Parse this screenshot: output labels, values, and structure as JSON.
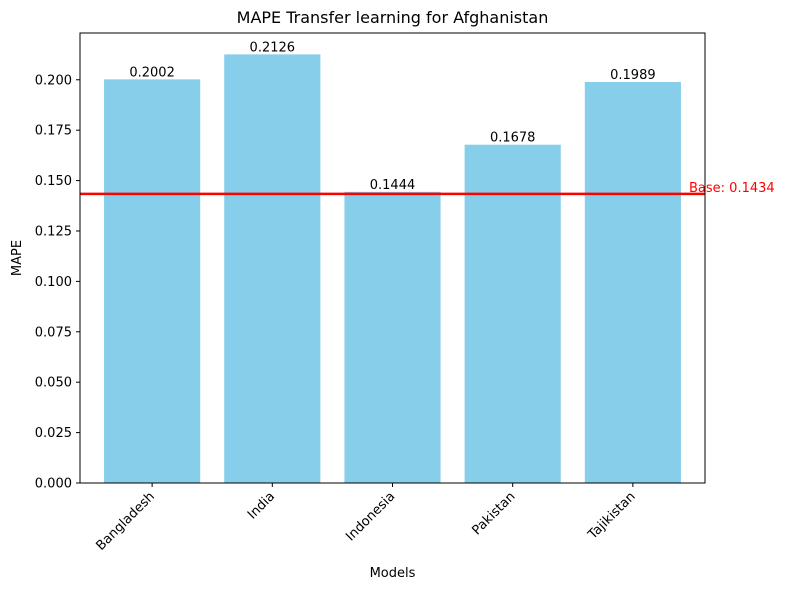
{
  "chart_data": {
    "type": "bar",
    "title": "MAPE Transfer learning for Afghanistan",
    "xlabel": "Models",
    "ylabel": "MAPE",
    "categories": [
      "Bangladesh",
      "India",
      "Indonesia",
      "Pakistan",
      "Tajikistan"
    ],
    "values": [
      0.2002,
      0.2126,
      0.1444,
      0.1678,
      0.1989
    ],
    "value_labels": [
      "0.2002",
      "0.2126",
      "0.1444",
      "0.1678",
      "0.1989"
    ],
    "bar_color": "#87ceeb",
    "ylim": [
      0,
      0.2232
    ],
    "yticks": [
      0.0,
      0.025,
      0.05,
      0.075,
      0.1,
      0.125,
      0.15,
      0.175,
      0.2
    ],
    "ytick_labels": [
      "0.000",
      "0.025",
      "0.050",
      "0.075",
      "0.100",
      "0.125",
      "0.150",
      "0.175",
      "0.200"
    ],
    "baseline": {
      "value": 0.1434,
      "label": "Base: 0.1434",
      "color": "#ff0000"
    },
    "grid": false,
    "legend": "none"
  }
}
